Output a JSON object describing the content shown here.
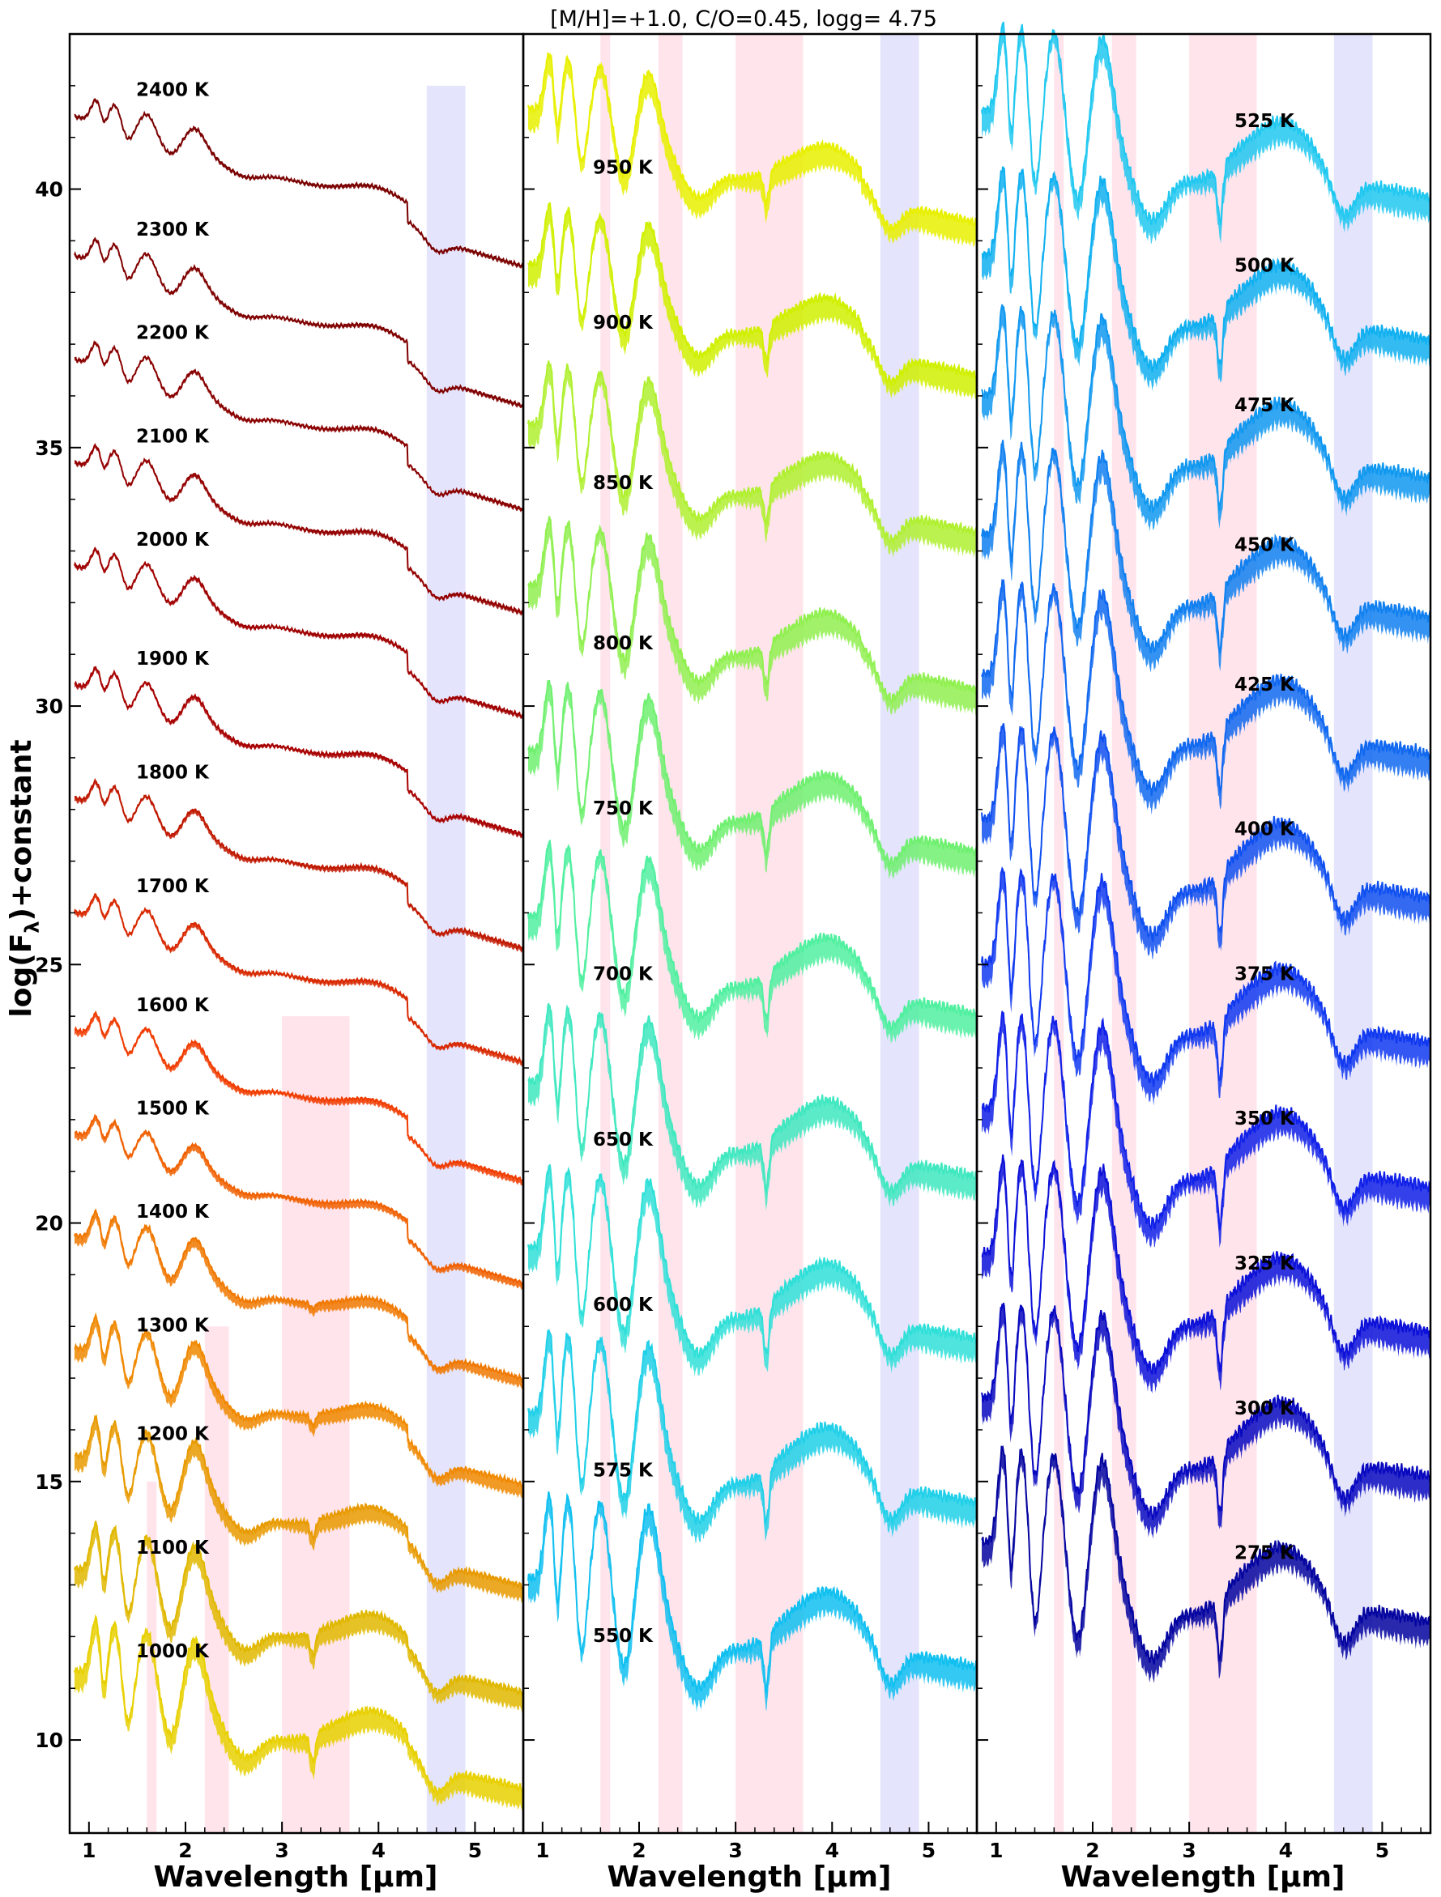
{
  "title": "[M/H]=+1.0, C/O=0.45, logg= 4.75",
  "ylabel": "log(F",
  "ylabel_sub": "λ",
  "ylabel_tail": ")+constant",
  "xlabel": "Wavelength [μm]",
  "chart_data": [
    {
      "type": "line",
      "panel": "left",
      "xlabel": "Wavelength [μm]",
      "ylabel": "log(Fλ)+constant",
      "xlim": [
        0.8,
        5.5
      ],
      "ylim": [
        8.2,
        43.0
      ],
      "x_ticks": [
        1,
        2,
        3,
        4,
        5
      ],
      "y_ticks": [
        10,
        15,
        20,
        25,
        30,
        35,
        40
      ],
      "shaded_bands": [
        {
          "x": [
            1.6,
            1.7
          ],
          "y": [
            8.2,
            15.0
          ],
          "color": "#ffe4ec"
        },
        {
          "x": [
            2.2,
            2.45
          ],
          "y": [
            8.2,
            18.0
          ],
          "color": "#ffe4ec"
        },
        {
          "x": [
            3.0,
            3.7
          ],
          "y": [
            8.2,
            24.0
          ],
          "color": "#ffe4ec"
        },
        {
          "x": [
            4.5,
            4.9
          ],
          "y": [
            8.2,
            42.0
          ],
          "color": "#e4e4fc"
        }
      ],
      "series": [
        {
          "name": "2400 K",
          "offset": 41.2,
          "color": "#7a0000",
          "spread": 0.05,
          "temperature": 2400
        },
        {
          "name": "2300 K",
          "offset": 38.5,
          "color": "#800000",
          "spread": 0.05,
          "temperature": 2300
        },
        {
          "name": "2200 K",
          "offset": 36.5,
          "color": "#8a0000",
          "spread": 0.05,
          "temperature": 2200
        },
        {
          "name": "2100 K",
          "offset": 34.5,
          "color": "#940000",
          "spread": 0.06,
          "temperature": 2100
        },
        {
          "name": "2000 K",
          "offset": 32.5,
          "color": "#a00000",
          "spread": 0.06,
          "temperature": 2000
        },
        {
          "name": "1900 K",
          "offset": 30.2,
          "color": "#a80000",
          "spread": 0.07,
          "temperature": 1900
        },
        {
          "name": "1800 K",
          "offset": 28.0,
          "color": "#c01800",
          "spread": 0.08,
          "temperature": 1800
        },
        {
          "name": "1700 K",
          "offset": 25.8,
          "color": "#d82800",
          "spread": 0.08,
          "temperature": 1700
        },
        {
          "name": "1600 K",
          "offset": 23.5,
          "color": "#f03c00",
          "spread": 0.1,
          "temperature": 1600
        },
        {
          "name": "1500 K",
          "offset": 21.5,
          "color": "#f06000",
          "spread": 0.12,
          "temperature": 1500
        },
        {
          "name": "1400 K",
          "offset": 19.5,
          "color": "#f07800",
          "spread": 0.18,
          "temperature": 1400
        },
        {
          "name": "1300 K",
          "offset": 17.3,
          "color": "#f08800",
          "spread": 0.25,
          "temperature": 1300
        },
        {
          "name": "1200 K",
          "offset": 15.2,
          "color": "#e89a00",
          "spread": 0.3,
          "temperature": 1200
        },
        {
          "name": "1100 K",
          "offset": 13.0,
          "color": "#e0b800",
          "spread": 0.35,
          "temperature": 1100
        },
        {
          "name": "1000 K",
          "offset": 11.0,
          "color": "#e8d000",
          "spread": 0.4,
          "temperature": 1000
        }
      ]
    },
    {
      "type": "line",
      "panel": "middle",
      "xlabel": "Wavelength [μm]",
      "xlim": [
        0.8,
        5.5
      ],
      "ylim": [
        8.2,
        43.0
      ],
      "x_ticks": [
        1,
        2,
        3,
        4,
        5
      ],
      "shaded_bands": [
        {
          "x": [
            1.6,
            1.7
          ],
          "y": [
            8.2,
            43.0
          ],
          "color": "#ffe4ec"
        },
        {
          "x": [
            2.2,
            2.45
          ],
          "y": [
            8.2,
            43.0
          ],
          "color": "#ffe4ec"
        },
        {
          "x": [
            3.0,
            3.7
          ],
          "y": [
            8.2,
            43.0
          ],
          "color": "#ffe4ec"
        },
        {
          "x": [
            4.5,
            4.9
          ],
          "y": [
            8.2,
            43.0
          ],
          "color": "#e4e4fc"
        }
      ],
      "series": [
        {
          "name": "950 K",
          "offset": 41.2,
          "color": "#e8f000",
          "spread": 0.45,
          "temperature": 950
        },
        {
          "name": "900 K",
          "offset": 38.2,
          "color": "#d0f000",
          "spread": 0.45,
          "temperature": 900
        },
        {
          "name": "850 K",
          "offset": 35.1,
          "color": "#b0f030",
          "spread": 0.45,
          "temperature": 850
        },
        {
          "name": "800 K",
          "offset": 32.0,
          "color": "#90f050",
          "spread": 0.45,
          "temperature": 800
        },
        {
          "name": "750 K",
          "offset": 28.8,
          "color": "#70f070",
          "spread": 0.45,
          "temperature": 750
        },
        {
          "name": "700 K",
          "offset": 25.6,
          "color": "#50f0a0",
          "spread": 0.45,
          "temperature": 700
        },
        {
          "name": "650 K",
          "offset": 22.4,
          "color": "#40e8c0",
          "spread": 0.45,
          "temperature": 650
        },
        {
          "name": "600 K",
          "offset": 19.2,
          "color": "#30e0d8",
          "spread": 0.45,
          "temperature": 600
        },
        {
          "name": "575 K",
          "offset": 16.0,
          "color": "#20d0e8",
          "spread": 0.45,
          "temperature": 575
        },
        {
          "name": "550 K",
          "offset": 12.8,
          "color": "#10c0f0",
          "spread": 0.45,
          "temperature": 550
        }
      ]
    },
    {
      "type": "line",
      "panel": "right",
      "xlabel": "Wavelength [μm]",
      "xlim": [
        0.8,
        5.5
      ],
      "ylim": [
        8.2,
        43.0
      ],
      "x_ticks": [
        1,
        2,
        3,
        4,
        5
      ],
      "shaded_bands": [
        {
          "x": [
            1.6,
            1.7
          ],
          "y": [
            8.2,
            43.0
          ],
          "color": "#ffe4ec"
        },
        {
          "x": [
            2.2,
            2.45
          ],
          "y": [
            8.2,
            43.0
          ],
          "color": "#ffe4ec"
        },
        {
          "x": [
            3.0,
            3.7
          ],
          "y": [
            8.2,
            43.0
          ],
          "color": "#ffe4ec"
        },
        {
          "x": [
            4.5,
            4.9
          ],
          "y": [
            8.2,
            43.0
          ],
          "color": "#e4e4fc"
        }
      ],
      "series": [
        {
          "name": "525 K",
          "offset": 41.2,
          "color": "#20c8f0",
          "spread": 0.45,
          "temperature": 525
        },
        {
          "name": "500 K",
          "offset": 38.4,
          "color": "#10b0f0",
          "spread": 0.45,
          "temperature": 500
        },
        {
          "name": "475 K",
          "offset": 35.7,
          "color": "#1098f0",
          "spread": 0.45,
          "temperature": 475
        },
        {
          "name": "450 K",
          "offset": 33.0,
          "color": "#1080f0",
          "spread": 0.45,
          "temperature": 450
        },
        {
          "name": "425 K",
          "offset": 30.3,
          "color": "#1068f0",
          "spread": 0.45,
          "temperature": 425
        },
        {
          "name": "400 K",
          "offset": 27.5,
          "color": "#1050f0",
          "spread": 0.45,
          "temperature": 400
        },
        {
          "name": "375 K",
          "offset": 24.7,
          "color": "#1038f0",
          "spread": 0.45,
          "temperature": 375
        },
        {
          "name": "350 K",
          "offset": 21.9,
          "color": "#1020e8",
          "spread": 0.45,
          "temperature": 350
        },
        {
          "name": "325 K",
          "offset": 19.1,
          "color": "#0c10d8",
          "spread": 0.45,
          "temperature": 325
        },
        {
          "name": "300 K",
          "offset": 16.3,
          "color": "#0808c0",
          "spread": 0.45,
          "temperature": 300
        },
        {
          "name": "275 K",
          "offset": 13.5,
          "color": "#0404a0",
          "spread": 0.45,
          "temperature": 275
        }
      ]
    }
  ]
}
